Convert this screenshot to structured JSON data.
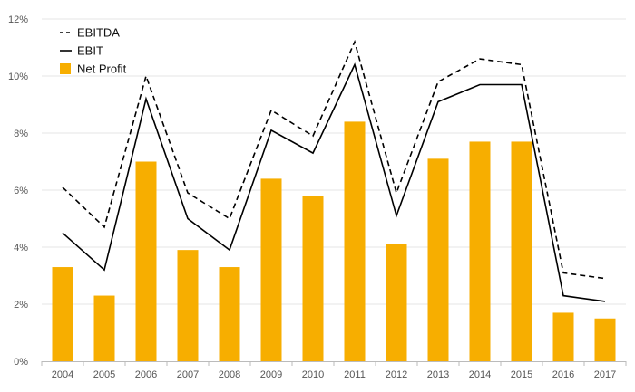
{
  "chart_data": {
    "type": "bar",
    "categories": [
      "2004",
      "2005",
      "2006",
      "2007",
      "2008",
      "2009",
      "2010",
      "2011",
      "2012",
      "2013",
      "2014",
      "2015",
      "2016",
      "2017"
    ],
    "y_ticks": [
      "0%",
      "2%",
      "4%",
      "6%",
      "8%",
      "10%",
      "12%"
    ],
    "ylim": [
      0,
      12
    ],
    "grid": true,
    "legend_position": "top-left",
    "series": [
      {
        "name": "EBITDA",
        "type": "line",
        "style": "dashed",
        "color": "#000000",
        "values": [
          6.1,
          4.7,
          10.0,
          5.9,
          5.0,
          8.8,
          7.9,
          11.2,
          5.9,
          9.8,
          10.6,
          10.4,
          3.1,
          2.9
        ]
      },
      {
        "name": "EBIT",
        "type": "line",
        "style": "solid",
        "color": "#000000",
        "values": [
          4.5,
          3.2,
          9.2,
          5.0,
          3.9,
          8.1,
          7.3,
          10.4,
          5.1,
          9.1,
          9.7,
          9.7,
          2.3,
          2.1
        ]
      },
      {
        "name": "Net Profit",
        "type": "bar",
        "color": "#F7AE00",
        "values": [
          3.3,
          2.3,
          7.0,
          3.9,
          3.3,
          6.4,
          5.8,
          8.4,
          4.1,
          7.1,
          7.7,
          7.7,
          1.7,
          1.5
        ]
      }
    ]
  }
}
